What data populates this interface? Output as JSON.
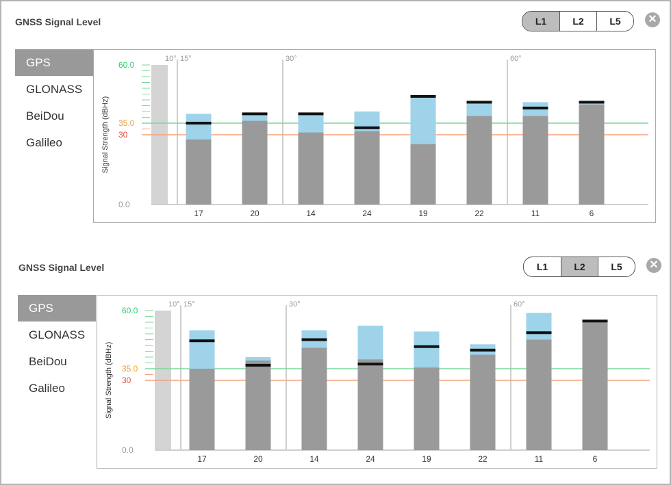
{
  "panels": [
    {
      "title": "GNSS Signal Level",
      "bands": [
        {
          "label": "L1",
          "active": true
        },
        {
          "label": "L2",
          "active": false
        },
        {
          "label": "L5",
          "active": false
        }
      ],
      "close_glyph": "✕",
      "constellations": [
        {
          "label": "GPS",
          "active": true
        },
        {
          "label": "GLONASS",
          "active": false
        },
        {
          "label": "BeiDou",
          "active": false
        },
        {
          "label": "Galileo",
          "active": false
        }
      ]
    },
    {
      "title": "GNSS Signal Level",
      "bands": [
        {
          "label": "L1",
          "active": false
        },
        {
          "label": "L2",
          "active": true
        },
        {
          "label": "L5",
          "active": false
        }
      ],
      "close_glyph": "✕",
      "constellations": [
        {
          "label": "GPS",
          "active": true
        },
        {
          "label": "GLONASS",
          "active": false
        },
        {
          "label": "BeiDou",
          "active": false
        },
        {
          "label": "Galileo",
          "active": false
        }
      ]
    }
  ],
  "chart_data": [
    {
      "type": "bar",
      "ylabel": "Signal Strength (dBHz)",
      "ylim": [
        0,
        60
      ],
      "y_ticks": [
        {
          "value": 60,
          "label": "60.0",
          "color": "#2ecc71"
        },
        {
          "value": 35,
          "label": "35.0",
          "color": "#e8a33a"
        },
        {
          "value": 30,
          "label": "30",
          "color": "#e74c3c"
        },
        {
          "value": 0,
          "label": "0.0",
          "color": "#999999"
        }
      ],
      "thresholds": [
        {
          "value": 35,
          "color": "#7fd69a"
        },
        {
          "value": 30,
          "color": "#f4a27c"
        }
      ],
      "elevation_markers": [
        {
          "label": "10°",
          "position_index": -1.2
        },
        {
          "label": "15°",
          "position_index": -0.5
        },
        {
          "label": "30°",
          "position_index": 1.5
        },
        {
          "label": "60°",
          "position_index": 5.5
        }
      ],
      "categories": [
        "17",
        "20",
        "14",
        "24",
        "19",
        "22",
        "11",
        "6"
      ],
      "series": [
        {
          "values": [
            28,
            36,
            31,
            31.5,
            26,
            38,
            38,
            43
          ]
        },
        {
          "values": [
            39,
            39.5,
            39.5,
            40,
            47,
            44.5,
            44,
            44.5
          ]
        },
        {
          "values": [
            35,
            39,
            39,
            33,
            46.5,
            44,
            41.5,
            44
          ]
        }
      ]
    },
    {
      "type": "bar",
      "ylabel": "Signal Strength (dBHz)",
      "ylim": [
        0,
        60
      ],
      "y_ticks": [
        {
          "value": 60,
          "label": "60.0",
          "color": "#2ecc71"
        },
        {
          "value": 35,
          "label": "35.0",
          "color": "#e8a33a"
        },
        {
          "value": 30,
          "label": "30",
          "color": "#e74c3c"
        },
        {
          "value": 0,
          "label": "0.0",
          "color": "#999999"
        }
      ],
      "thresholds": [
        {
          "value": 35,
          "color": "#7fd69a"
        },
        {
          "value": 30,
          "color": "#f4a27c"
        }
      ],
      "elevation_markers": [
        {
          "label": "10°",
          "position_index": -1.2
        },
        {
          "label": "15°",
          "position_index": -0.5
        },
        {
          "label": "30°",
          "position_index": 1.5
        },
        {
          "label": "60°",
          "position_index": 5.5
        }
      ],
      "categories": [
        "17",
        "20",
        "14",
        "24",
        "19",
        "22",
        "11",
        "6"
      ],
      "series": [
        {
          "values": [
            35,
            38.5,
            44,
            39,
            35.5,
            41,
            47.5,
            55
          ]
        },
        {
          "values": [
            51.5,
            40,
            51.5,
            53.5,
            51,
            45.5,
            59,
            55.5
          ]
        },
        {
          "values": [
            47,
            36.5,
            47.5,
            37,
            44.5,
            43,
            50.5,
            55.5
          ]
        }
      ]
    }
  ]
}
